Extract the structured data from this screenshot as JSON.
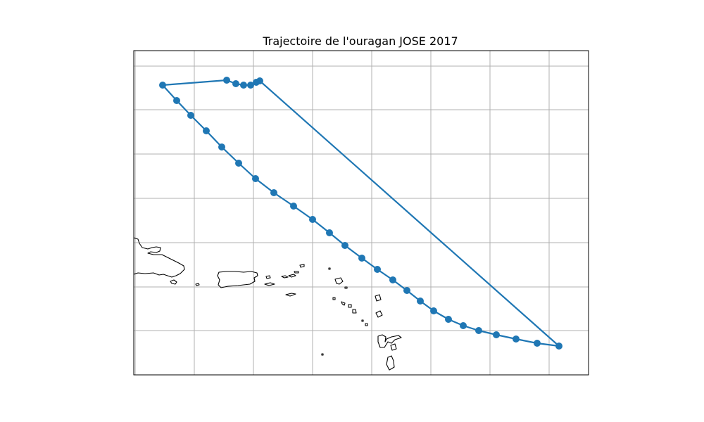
{
  "title": "Trajectoire de l'ouragan JOSE 2017",
  "map": {
    "type": "track-map",
    "projection": "PlateCarree",
    "grid": true,
    "grid_labels": false,
    "track_color": "#1f77b4",
    "storm_name": "JOSE",
    "year": 2017,
    "track_order": "connected in sequence, closing back from the last fix to the first"
  }
}
